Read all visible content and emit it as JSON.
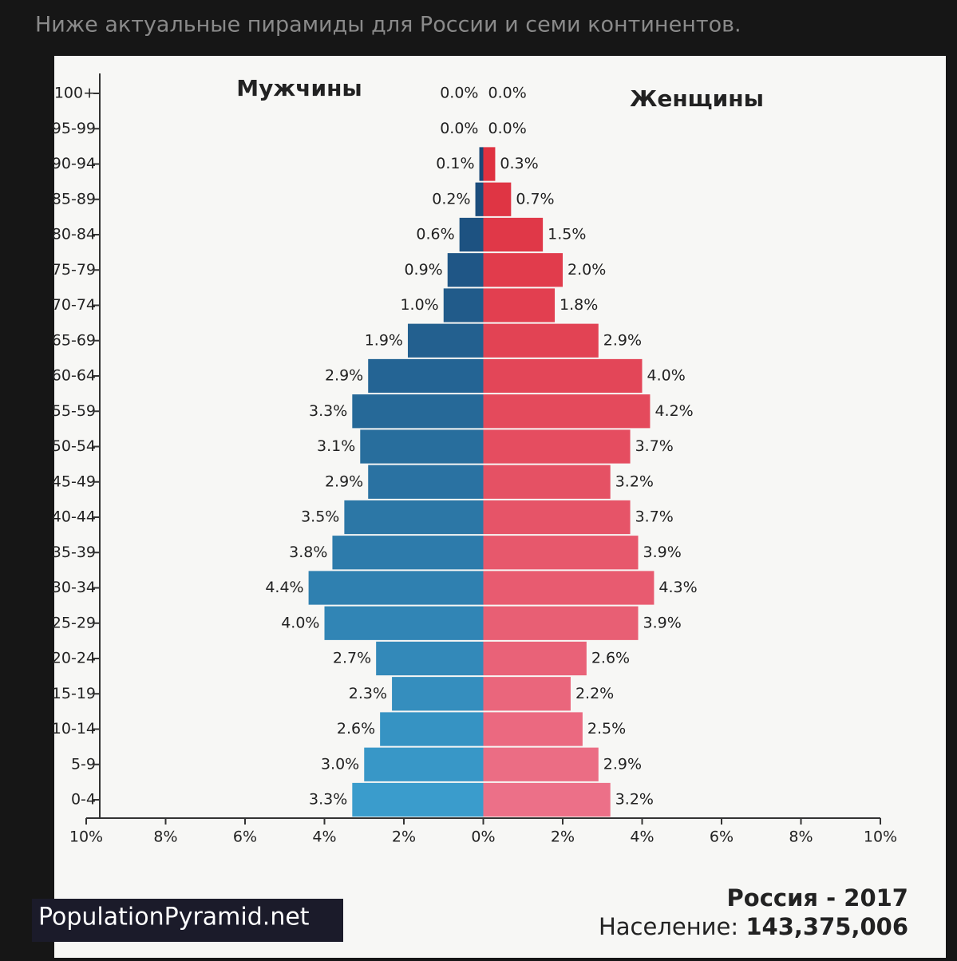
{
  "header": "Ниже актуальные пирамиды для России и семи континентов.",
  "chart_data": {
    "type": "pyramid",
    "left_title": "Мужчины",
    "right_title": "Женщины",
    "categories": [
      "0-4",
      "5-9",
      "10-14",
      "15-19",
      "20-24",
      "25-29",
      "30-34",
      "35-39",
      "40-44",
      "45-49",
      "50-54",
      "55-59",
      "60-64",
      "65-69",
      "70-74",
      "75-79",
      "80-84",
      "85-89",
      "90-94",
      "95-99",
      "100+"
    ],
    "series": [
      {
        "name": "Мужчины",
        "side": "left",
        "colors": [
          "#3a9ccc",
          "#163f6e"
        ],
        "values": [
          3.3,
          3.0,
          2.6,
          2.3,
          2.7,
          4.0,
          4.4,
          3.8,
          3.5,
          2.9,
          3.1,
          3.3,
          2.9,
          1.9,
          1.0,
          0.9,
          0.6,
          0.2,
          0.1,
          0.0,
          0.0
        ],
        "value_labels": [
          "3.3%",
          "3.0%",
          "2.6%",
          "2.3%",
          "2.7%",
          "4.0%",
          "4.4%",
          "3.8%",
          "3.5%",
          "2.9%",
          "3.1%",
          "3.3%",
          "2.9%",
          "1.9%",
          "1.0%",
          "0.9%",
          "0.6%",
          "0.2%",
          "0.1%",
          "0.0%",
          "0.0%"
        ]
      },
      {
        "name": "Женщины",
        "side": "right",
        "colors": [
          "#ec7088",
          "#dd2a38"
        ],
        "values": [
          3.2,
          2.9,
          2.5,
          2.2,
          2.6,
          3.9,
          4.3,
          3.9,
          3.7,
          3.2,
          3.7,
          4.2,
          4.0,
          2.9,
          1.8,
          2.0,
          1.5,
          0.7,
          0.3,
          0.0,
          0.0
        ],
        "value_labels": [
          "3.2%",
          "2.9%",
          "2.5%",
          "2.2%",
          "2.6%",
          "3.9%",
          "4.3%",
          "3.9%",
          "3.7%",
          "3.2%",
          "3.7%",
          "4.2%",
          "4.0%",
          "2.9%",
          "1.8%",
          "2.0%",
          "1.5%",
          "0.7%",
          "0.3%",
          "0.0%",
          "0.0%"
        ]
      }
    ],
    "xlim": [
      -10,
      10
    ],
    "xticks": [
      {
        "value": -10,
        "label": "10%"
      },
      {
        "value": -8,
        "label": "8%"
      },
      {
        "value": -6,
        "label": "6%"
      },
      {
        "value": -4,
        "label": "4%"
      },
      {
        "value": -2,
        "label": "2%"
      },
      {
        "value": 0,
        "label": "0%"
      },
      {
        "value": 2,
        "label": "2%"
      },
      {
        "value": 4,
        "label": "4%"
      },
      {
        "value": 6,
        "label": "6%"
      },
      {
        "value": 8,
        "label": "8%"
      },
      {
        "value": 10,
        "label": "10%"
      }
    ]
  },
  "footer": {
    "brand": "PopulationPyramid.net",
    "country": "Россия - 2017",
    "population_label": "Население:",
    "population": "143,375,006"
  }
}
